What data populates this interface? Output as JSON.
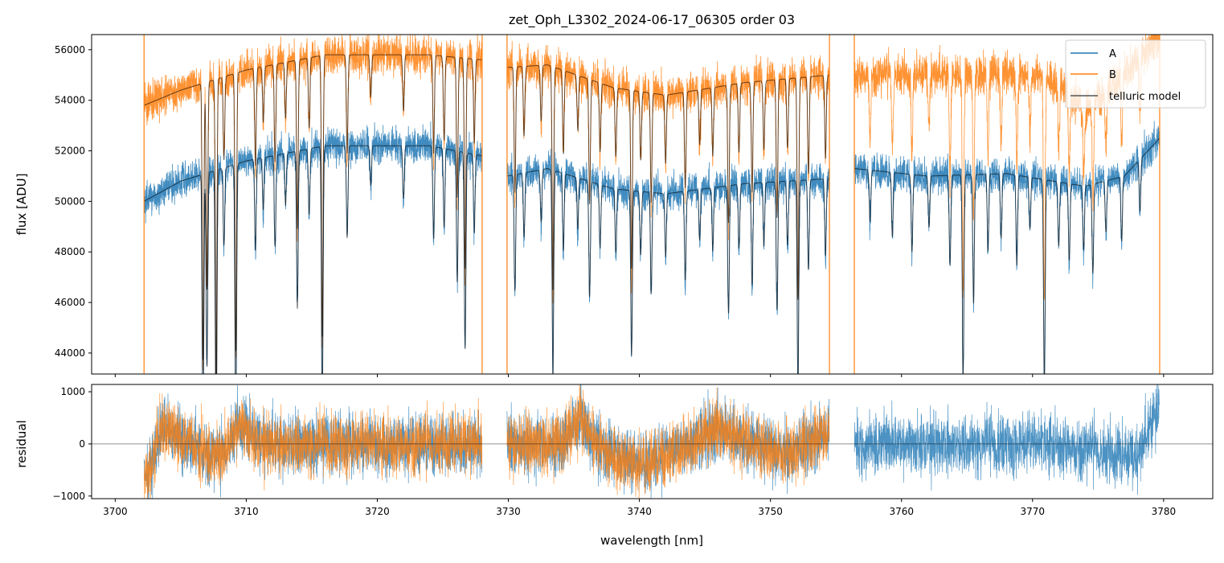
{
  "title": "zet_Oph_L3302_2024-06-17_06305  order 03",
  "chart_data": [
    {
      "type": "line",
      "panel": "flux",
      "ylabel": "flux [ADU]",
      "xlim": [
        3698.2,
        3783.75
      ],
      "ylim": [
        43170,
        56600
      ],
      "yticks": [
        44000,
        46000,
        48000,
        50000,
        52000,
        54000,
        56000
      ],
      "legend": {
        "placement": "top-right",
        "entries": [
          "A",
          "B",
          "telluric model"
        ]
      },
      "colors": {
        "A": "#1f77b4",
        "B": "#ff7f0e",
        "model": "#000000"
      },
      "segments": [
        {
          "start": 3702.2,
          "end": 3728.0,
          "contA": [
            [
              3702.2,
              50000
            ],
            [
              3705,
              50800
            ],
            [
              3710,
              51600
            ],
            [
              3716,
              52200
            ],
            [
              3724,
              52200
            ],
            [
              3728,
              51800
            ]
          ],
          "contB": [
            [
              3702.2,
              53800
            ],
            [
              3705,
              54400
            ],
            [
              3710,
              55200
            ],
            [
              3716,
              55800
            ],
            [
              3724,
              55800
            ],
            [
              3728,
              55600
            ]
          ],
          "modelB": true
        },
        {
          "start": 3729.9,
          "end": 3754.5,
          "contA": [
            [
              3729.9,
              51000
            ],
            [
              3733,
              51300
            ],
            [
              3738,
              50500
            ],
            [
              3742,
              50300
            ],
            [
              3748,
              50700
            ],
            [
              3754.5,
              50900
            ]
          ],
          "contB": [
            [
              3729.9,
              55300
            ],
            [
              3733,
              55400
            ],
            [
              3738,
              54500
            ],
            [
              3742,
              54200
            ],
            [
              3748,
              54700
            ],
            [
              3754.5,
              55000
            ]
          ],
          "modelB": true
        },
        {
          "start": 3756.4,
          "end": 3779.7,
          "contA": [
            [
              3756.4,
              51300
            ],
            [
              3762,
              51000
            ],
            [
              3768,
              51100
            ],
            [
              3774,
              50600
            ],
            [
              3777,
              51000
            ],
            [
              3779.7,
              52500
            ]
          ],
          "contB": [
            [
              3756.4,
              55000
            ],
            [
              3762,
              55000
            ],
            [
              3768,
              55100
            ],
            [
              3772,
              54800
            ],
            [
              3774,
              53600
            ],
            [
              3776,
              54600
            ],
            [
              3779.7,
              56500
            ]
          ],
          "modelB": false
        }
      ],
      "lines": [
        [
          3706.7,
          0.2
        ],
        [
          3707.0,
          0.15
        ],
        [
          3707.7,
          0.22
        ],
        [
          3708.3,
          0.06
        ],
        [
          3709.2,
          0.2
        ],
        [
          3710.7,
          0.07
        ],
        [
          3711.3,
          0.04
        ],
        [
          3712.2,
          0.07
        ],
        [
          3713.0,
          0.04
        ],
        [
          3713.9,
          0.12
        ],
        [
          3714.8,
          0.05
        ],
        [
          3715.8,
          0.2
        ],
        [
          3717.7,
          0.07
        ],
        [
          3719.5,
          0.03
        ],
        [
          3722.0,
          0.04
        ],
        [
          3724.3,
          0.07
        ],
        [
          3725.1,
          0.06
        ],
        [
          3726.1,
          0.1
        ],
        [
          3726.7,
          0.15
        ],
        [
          3727.4,
          0.06
        ],
        [
          3730.5,
          0.09
        ],
        [
          3731.2,
          0.05
        ],
        [
          3732.5,
          0.04
        ],
        [
          3733.4,
          0.16
        ],
        [
          3734.2,
          0.06
        ],
        [
          3735.3,
          0.04
        ],
        [
          3736.2,
          0.09
        ],
        [
          3737.0,
          0.05
        ],
        [
          3738.2,
          0.05
        ],
        [
          3739.4,
          0.13
        ],
        [
          3740.1,
          0.05
        ],
        [
          3740.9,
          0.08
        ],
        [
          3742.0,
          0.05
        ],
        [
          3743.5,
          0.07
        ],
        [
          3744.6,
          0.04
        ],
        [
          3745.6,
          0.05
        ],
        [
          3746.8,
          0.1
        ],
        [
          3747.6,
          0.05
        ],
        [
          3748.6,
          0.08
        ],
        [
          3749.5,
          0.05
        ],
        [
          3750.5,
          0.1
        ],
        [
          3751.3,
          0.05
        ],
        [
          3752.1,
          0.16
        ],
        [
          3752.9,
          0.07
        ],
        [
          3754.2,
          0.06
        ],
        [
          3757.6,
          0.04
        ],
        [
          3759.3,
          0.05
        ],
        [
          3760.8,
          0.06
        ],
        [
          3762.1,
          0.04
        ],
        [
          3763.7,
          0.07
        ],
        [
          3764.7,
          0.16
        ],
        [
          3765.5,
          0.1
        ],
        [
          3766.6,
          0.06
        ],
        [
          3767.6,
          0.05
        ],
        [
          3768.8,
          0.07
        ],
        [
          3769.8,
          0.04
        ],
        [
          3770.9,
          0.16
        ],
        [
          3772.0,
          0.05
        ],
        [
          3772.8,
          0.06
        ],
        [
          3773.9,
          0.05
        ],
        [
          3774.6,
          0.07
        ],
        [
          3775.6,
          0.04
        ],
        [
          3776.8,
          0.05
        ],
        [
          3778.2,
          0.04
        ]
      ],
      "noise": {
        "A": 350,
        "B": 400
      }
    },
    {
      "type": "line",
      "panel": "residual",
      "xlabel": "wavelength [nm]",
      "ylabel": "residual",
      "xlim": [
        3698.2,
        3783.75
      ],
      "ylim": [
        -1050,
        1140
      ],
      "yticks": [
        -1000,
        0,
        1000
      ],
      "xticks": [
        3700,
        3710,
        3720,
        3730,
        3740,
        3750,
        3760,
        3770,
        3780
      ],
      "trend": [
        [
          3702.5,
          -600
        ],
        [
          3703.5,
          300
        ],
        [
          3706,
          0
        ],
        [
          3708,
          -300
        ],
        [
          3709.5,
          400
        ],
        [
          3711,
          0
        ],
        [
          3728,
          0
        ],
        [
          3730,
          0
        ],
        [
          3734,
          0
        ],
        [
          3735.5,
          500
        ],
        [
          3737,
          -100
        ],
        [
          3740,
          -400
        ],
        [
          3743,
          -100
        ],
        [
          3746,
          300
        ],
        [
          3749,
          0
        ],
        [
          3751,
          -200
        ],
        [
          3754.5,
          200
        ],
        [
          3756.4,
          0
        ],
        [
          3772,
          0
        ],
        [
          3778,
          -300
        ],
        [
          3779.7,
          800
        ]
      ],
      "noise": 300
    }
  ]
}
